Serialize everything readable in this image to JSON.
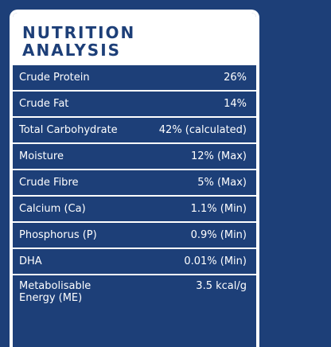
{
  "header": {
    "title": [
      "NUTRITION",
      "ANALYSIS"
    ]
  },
  "table": {
    "rows": [
      [
        "Crude Protein",
        "26%"
      ],
      [
        "Crude Fat",
        "14%"
      ],
      [
        "Total Carbohydrate",
        "42% (calculated)"
      ],
      [
        "Moisture",
        "12% (Max)"
      ],
      [
        "Crude Fibre",
        "5% (Max)"
      ],
      [
        "Calcium (Ca)",
        "1.1% (Min)"
      ],
      [
        "Phosphorus (P)",
        "0.9% (Min)"
      ],
      [
        "DHA",
        "0.01% (Min)"
      ],
      [
        "Metabolisable\nEnergy (ME)",
        "3.5 kcal/g"
      ]
    ]
  }
}
